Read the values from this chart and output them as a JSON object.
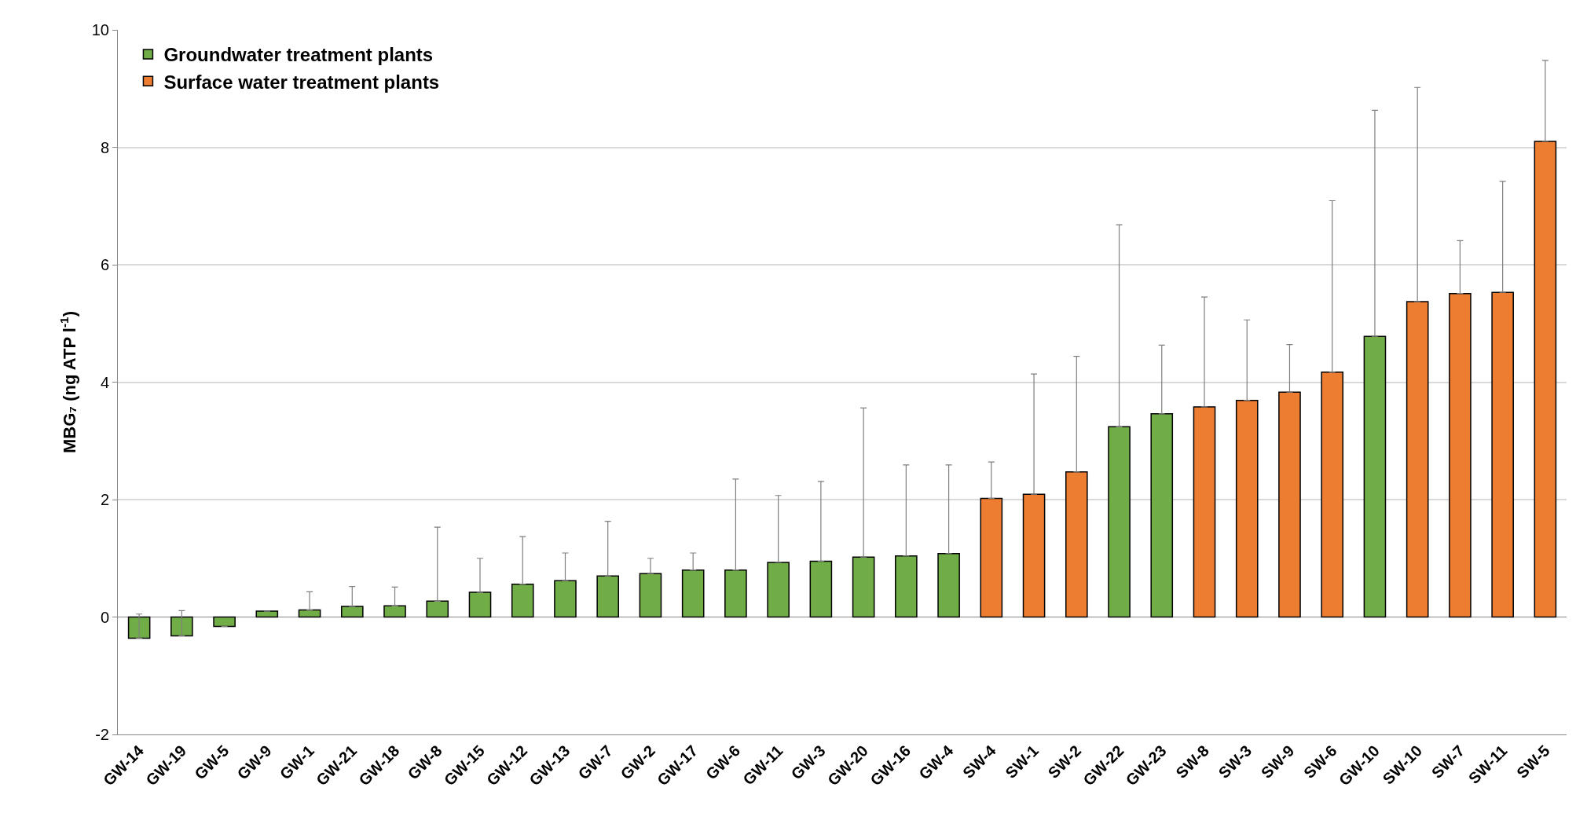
{
  "chart_data": {
    "type": "bar",
    "ylabel": "MBG₇ (ng ATP l$^{-1}$)",
    "categories": [
      "GW-14",
      "GW-19",
      "GW-5",
      "GW-9",
      "GW-1",
      "GW-21",
      "GW-18",
      "GW-8",
      "GW-15",
      "GW-12",
      "GW-13",
      "GW-7",
      "GW-2",
      "GW-17",
      "GW-6",
      "GW-11",
      "GW-3",
      "GW-20",
      "GW-16",
      "GW-4",
      "SW-4",
      "SW-1",
      "SW-2",
      "GW-22",
      "GW-23",
      "SW-8",
      "SW-3",
      "SW-9",
      "SW-6",
      "GW-10",
      "SW-10",
      "SW-7",
      "SW-11",
      "SW-5"
    ],
    "series": [
      {
        "name": "Groundwater treatment plants",
        "color": "#70ad47",
        "values": [
          -0.36,
          -0.32,
          -0.16,
          0.1,
          0.12,
          0.18,
          0.19,
          0.27,
          0.42,
          0.56,
          0.62,
          0.7,
          0.74,
          0.8,
          0.8,
          0.93,
          0.95,
          1.02,
          1.04,
          1.08,
          null,
          null,
          null,
          3.24,
          3.46,
          null,
          null,
          null,
          null,
          4.78,
          null,
          null,
          null,
          null
        ],
        "errors": [
          [
            -0.36,
            0.05
          ],
          [
            -0.32,
            0.11
          ],
          null,
          null,
          [
            0.12,
            0.43
          ],
          [
            0.18,
            0.52
          ],
          [
            0.19,
            0.51
          ],
          [
            0.27,
            1.53
          ],
          [
            0.42,
            1.0
          ],
          [
            0.56,
            1.37
          ],
          [
            0.62,
            1.09
          ],
          [
            0.7,
            1.63
          ],
          [
            0.74,
            1.0
          ],
          [
            0.8,
            1.09
          ],
          [
            0.8,
            2.35
          ],
          [
            0.93,
            2.07
          ],
          [
            0.95,
            2.31
          ],
          [
            1.02,
            3.56
          ],
          [
            1.04,
            2.59
          ],
          [
            1.08,
            2.59
          ],
          null,
          null,
          null,
          [
            3.24,
            6.68
          ],
          [
            3.46,
            4.63
          ],
          null,
          null,
          null,
          null,
          [
            4.78,
            8.63
          ],
          null,
          null,
          null,
          null
        ]
      },
      {
        "name": "Surface water treatment plants",
        "color": "#ed7d31",
        "values": [
          null,
          null,
          null,
          null,
          null,
          null,
          null,
          null,
          null,
          null,
          null,
          null,
          null,
          null,
          null,
          null,
          null,
          null,
          null,
          null,
          2.02,
          2.09,
          2.47,
          null,
          null,
          3.58,
          3.69,
          3.83,
          4.17,
          null,
          5.37,
          5.51,
          5.53,
          8.1
        ],
        "errors": [
          null,
          null,
          null,
          null,
          null,
          null,
          null,
          null,
          null,
          null,
          null,
          null,
          null,
          null,
          null,
          null,
          null,
          null,
          null,
          null,
          [
            2.02,
            2.64
          ],
          [
            2.09,
            4.14
          ],
          [
            2.47,
            4.44
          ],
          null,
          null,
          [
            3.58,
            5.45
          ],
          [
            3.69,
            5.06
          ],
          [
            3.83,
            4.64
          ],
          [
            4.17,
            7.09
          ],
          null,
          [
            5.37,
            9.02
          ],
          [
            5.51,
            6.41
          ],
          [
            5.53,
            7.42
          ],
          [
            8.1,
            9.48
          ]
        ]
      }
    ],
    "ylim": [
      -2,
      10
    ],
    "yticks": [
      -2,
      0,
      2,
      4,
      6,
      8,
      10
    ],
    "grid": "y",
    "legend": "top left"
  }
}
